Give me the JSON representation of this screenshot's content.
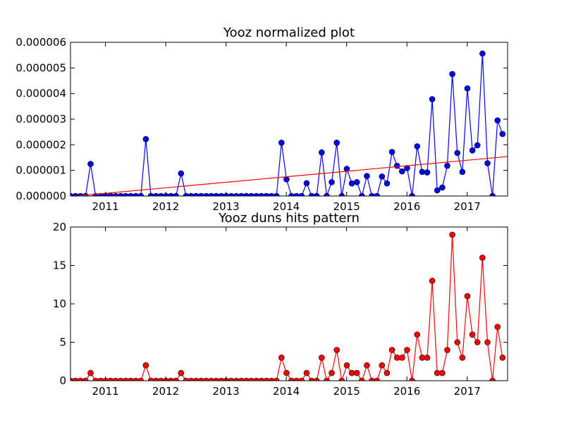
{
  "chart_data": [
    {
      "type": "line",
      "title": "Yooz normalized plot",
      "xlabel": "",
      "ylabel": "",
      "xlim": [
        2010.42,
        2017.67
      ],
      "ylim": [
        0,
        6e-06
      ],
      "x_ticks": [
        2011,
        2012,
        2013,
        2014,
        2015,
        2016,
        2017
      ],
      "x_tick_labels": [
        "2011",
        "2012",
        "2013",
        "2014",
        "2015",
        "2016",
        "2017"
      ],
      "y_ticks": [
        0,
        1e-06,
        2e-06,
        3e-06,
        4e-06,
        5e-06,
        6e-06
      ],
      "y_tick_labels": [
        "0.000000",
        "0.000001",
        "0.000002",
        "0.000003",
        "0.000004",
        "0.000005",
        "0.000006"
      ],
      "grid": false,
      "series": [
        {
          "color": "#0000ff",
          "marker": "circle",
          "x_start": 2010.42,
          "x_step": 0.08333,
          "values": [
            0,
            0,
            0,
            0,
            1.25e-06,
            0,
            0,
            0,
            0,
            0,
            0,
            0,
            0,
            0,
            0,
            2.22e-06,
            0,
            0,
            0,
            0,
            0,
            0,
            8.8e-07,
            0,
            0,
            0,
            0,
            0,
            0,
            0,
            0,
            0,
            0,
            0,
            0,
            0,
            0,
            0,
            0,
            0,
            0,
            0,
            2.08e-06,
            6.5e-07,
            0,
            0,
            0,
            5e-07,
            0,
            0,
            1.7e-06,
            0,
            5.4e-07,
            2.08e-06,
            0,
            1.06e-06,
            4.9e-07,
            5.4e-07,
            0,
            7.8e-07,
            0,
            0,
            7.6e-07,
            4.9e-07,
            1.72e-06,
            1.18e-06,
            9.6e-07,
            1.09e-06,
            0,
            1.94e-06,
            9.4e-07,
            9.2e-07,
            3.78e-06,
            2.2e-07,
            3.3e-07,
            1.18e-06,
            4.76e-06,
            1.68e-06,
            9.4e-07,
            4.2e-06,
            1.78e-06,
            1.98e-06,
            5.56e-06,
            1.28e-06,
            0,
            2.95e-06,
            2.42e-06
          ]
        },
        {
          "type": "trendline",
          "color": "#ff0000",
          "x": [
            2010.42,
            2017.67
          ],
          "y": [
            -2e-08,
            1.54e-06
          ]
        }
      ]
    },
    {
      "type": "line",
      "title": "Yooz duns hits pattern",
      "xlabel": "",
      "ylabel": "",
      "xlim": [
        2010.42,
        2017.67
      ],
      "ylim": [
        0,
        20
      ],
      "x_ticks": [
        2011,
        2012,
        2013,
        2014,
        2015,
        2016,
        2017
      ],
      "x_tick_labels": [
        "2011",
        "2012",
        "2013",
        "2014",
        "2015",
        "2016",
        "2017"
      ],
      "y_ticks": [
        0,
        5,
        10,
        15,
        20
      ],
      "y_tick_labels": [
        "0",
        "5",
        "10",
        "15",
        "20"
      ],
      "grid": false,
      "series": [
        {
          "color": "#ff0000",
          "marker": "circle",
          "x_start": 2010.42,
          "x_step": 0.08333,
          "values": [
            0,
            0,
            0,
            0,
            1,
            0,
            0,
            0,
            0,
            0,
            0,
            0,
            0,
            0,
            0,
            2,
            0,
            0,
            0,
            0,
            0,
            0,
            1,
            0,
            0,
            0,
            0,
            0,
            0,
            0,
            0,
            0,
            0,
            0,
            0,
            0,
            0,
            0,
            0,
            0,
            0,
            0,
            3,
            1,
            0,
            0,
            0,
            1,
            0,
            0,
            3,
            0,
            1,
            4,
            0,
            2,
            1,
            1,
            0,
            2,
            0,
            0,
            2,
            1,
            4,
            3,
            3,
            4,
            0,
            6,
            3,
            3,
            13,
            1,
            1,
            4,
            19,
            5,
            3,
            11,
            6,
            5,
            16,
            5,
            0,
            7,
            3
          ]
        }
      ]
    }
  ]
}
